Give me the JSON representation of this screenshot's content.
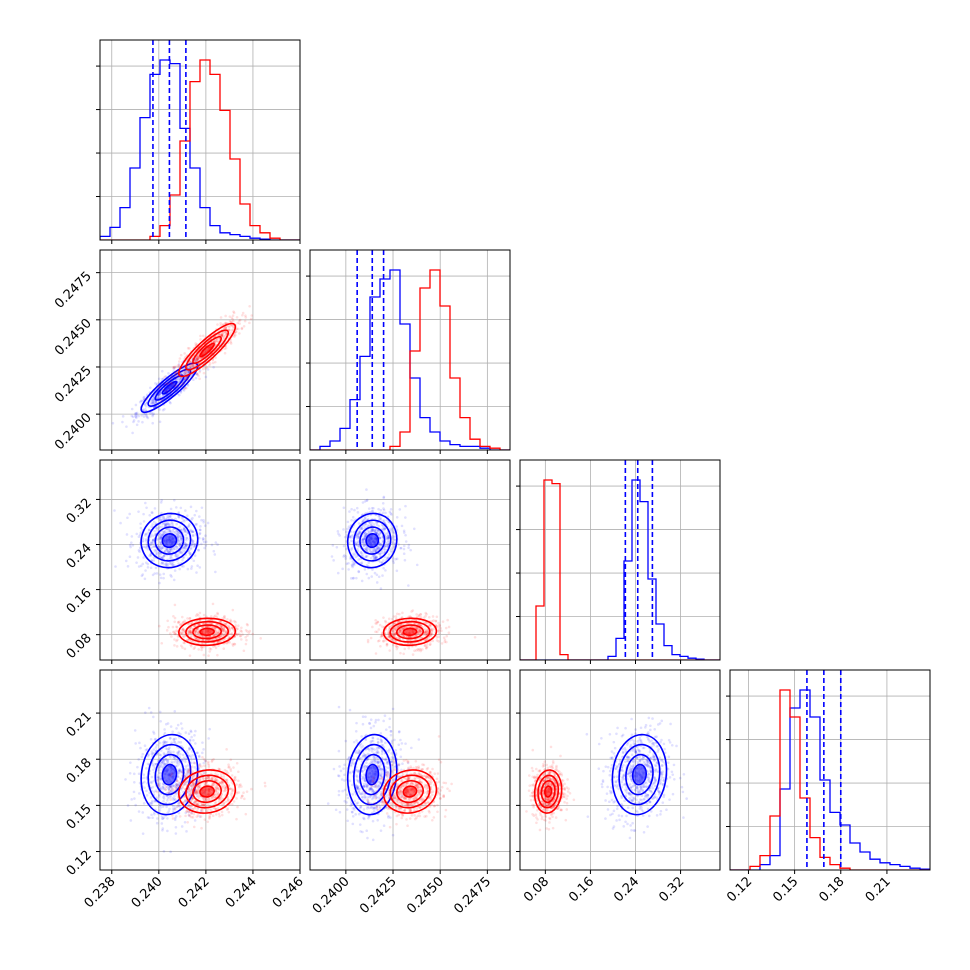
{
  "chart_data": {
    "type": "scatter",
    "title": "",
    "params": [
      {
        "range": [
          0.2375,
          0.246
        ],
        "ticks": [
          "0.238",
          "0.240",
          "0.242",
          "0.244",
          "0.246"
        ],
        "tick_values": [
          0.238,
          0.24,
          0.242,
          0.244,
          0.246
        ]
      },
      {
        "range": [
          0.2381,
          0.2487
        ],
        "ticks": [
          "0.2400",
          "0.2425",
          "0.2450",
          "0.2475"
        ],
        "tick_values": [
          0.24,
          0.2425,
          0.245,
          0.2475
        ]
      },
      {
        "range": [
          0.035,
          0.39
        ],
        "ticks": [
          "0.08",
          "0.16",
          "0.24",
          "0.32"
        ],
        "tick_values": [
          0.08,
          0.16,
          0.24,
          0.32
        ]
      },
      {
        "range": [
          0.108,
          0.238
        ],
        "ticks": [
          "0.12",
          "0.15",
          "0.18",
          "0.21"
        ],
        "tick_values": [
          0.12,
          0.15,
          0.18,
          0.21
        ]
      }
    ],
    "colors": {
      "blue": "#0000ff",
      "red": "#ff0000"
    },
    "series": [
      {
        "color": "blue",
        "means": [
          0.24045,
          0.2414,
          0.247,
          0.17
        ],
        "sds": [
          0.0006,
          0.00065,
          0.024,
          0.013
        ],
        "quantiles": [
          [
            0.23975,
            0.24045,
            0.24115
          ],
          [
            0.2406,
            0.2414,
            0.242
          ],
          [
            0.222,
            0.244,
            0.27
          ],
          [
            0.158,
            0.169,
            0.18
          ]
        ],
        "hist": [
          [
            0.02,
            0.07,
            0.18,
            0.4,
            0.68,
            0.92,
            1.0,
            0.98,
            0.62,
            0.4,
            0.18,
            0.08,
            0.04,
            0.03,
            0.02,
            0.01,
            0.005,
            0.0,
            0.0,
            0.0
          ],
          [
            0.0,
            0.02,
            0.05,
            0.12,
            0.28,
            0.52,
            0.85,
            0.95,
            1.0,
            0.7,
            0.4,
            0.18,
            0.1,
            0.05,
            0.03,
            0.02,
            0.02,
            0.01,
            0.0,
            0.0
          ],
          [
            0.0,
            0.0,
            0.0,
            0.0,
            0.0,
            0.0,
            0.0,
            0.0,
            0.0,
            0.0,
            0.0,
            0.02,
            0.12,
            0.55,
            1.0,
            0.88,
            0.45,
            0.2,
            0.08,
            0.03,
            0.02,
            0.01,
            0.005,
            0.0,
            0.0
          ],
          [
            0.0,
            0.0,
            0.0,
            0.03,
            0.08,
            0.45,
            0.9,
            1.0,
            0.85,
            0.5,
            0.32,
            0.25,
            0.15,
            0.1,
            0.06,
            0.04,
            0.03,
            0.02,
            0.01,
            0.005
          ]
        ]
      },
      {
        "color": "red",
        "means": [
          0.24205,
          0.2434,
          0.085,
          0.159
        ],
        "sds": [
          0.0006,
          0.0007,
          0.012,
          0.007
        ],
        "hist": [
          [
            0.0,
            0.0,
            0.0,
            0.0,
            0.0,
            0.02,
            0.08,
            0.25,
            0.55,
            0.88,
            1.0,
            0.92,
            0.72,
            0.45,
            0.2,
            0.08,
            0.04,
            0.01,
            0.0,
            0.0
          ],
          [
            0.0,
            0.0,
            0.0,
            0.0,
            0.0,
            0.0,
            0.0,
            0.0,
            0.02,
            0.1,
            0.55,
            0.9,
            1.0,
            0.8,
            0.4,
            0.18,
            0.06,
            0.02,
            0.01,
            0.0
          ],
          [
            0.0,
            0.0,
            0.3,
            1.0,
            0.98,
            0.03,
            0.0,
            0.0,
            0.0,
            0.0,
            0.0,
            0.0,
            0.0,
            0.0,
            0.0,
            0.0,
            0.0,
            0.0,
            0.0,
            0.0,
            0.0,
            0.0,
            0.0,
            0.0,
            0.0
          ],
          [
            0.0,
            0.0,
            0.02,
            0.08,
            0.3,
            1.0,
            0.85,
            0.4,
            0.18,
            0.07,
            0.03,
            0.01,
            0.0,
            0.0,
            0.0,
            0.0,
            0.0,
            0.0,
            0.0,
            0.0
          ]
        ]
      }
    ],
    "contour_levels": [
      0.5,
      1.0,
      1.5,
      2.0
    ],
    "quantile_lines": "dashed",
    "grid": true
  }
}
